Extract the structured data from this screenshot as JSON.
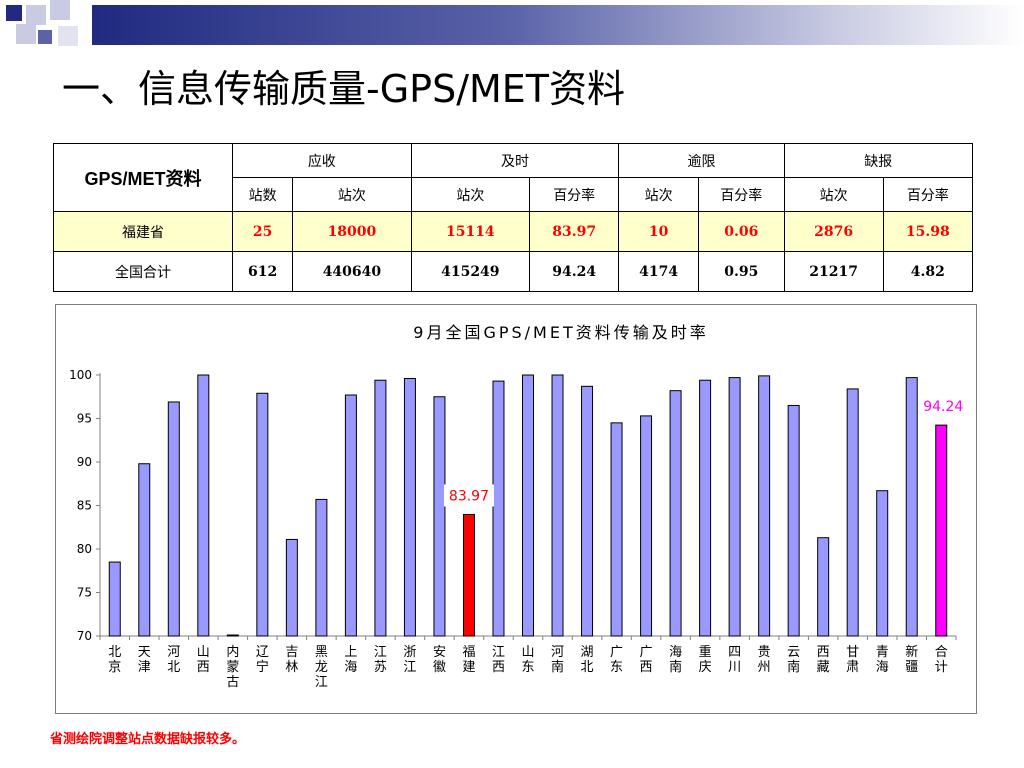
{
  "slide": {
    "title": "一、信息传输质量-GPS/MET资料",
    "note": "省测绘院调整站点数据缺报较多。"
  },
  "table": {
    "corner": "GPS/MET资料",
    "groups": [
      "应收",
      "及时",
      "逾限",
      "缺报"
    ],
    "subheaders": [
      "站数",
      "站次",
      "站次",
      "百分率",
      "站次",
      "百分率",
      "站次",
      "百分率"
    ],
    "rows": [
      {
        "label": "福建省",
        "values": [
          "25",
          "18000",
          "15114",
          "83.97",
          "10",
          "0.06",
          "2876",
          "15.98"
        ]
      },
      {
        "label": "全国合计",
        "values": [
          "612",
          "440640",
          "415249",
          "94.24",
          "4174",
          "0.95",
          "21217",
          "4.82"
        ]
      }
    ]
  },
  "chart_data": {
    "type": "bar",
    "title": "9月全国GPS/MET资料传输及时率",
    "xlabel": "",
    "ylabel": "",
    "ylim": [
      70,
      100
    ],
    "yticks": [
      70,
      75,
      80,
      85,
      90,
      95,
      100
    ],
    "grid": false,
    "legend": "none",
    "categories": [
      "北京",
      "天津",
      "河北",
      "山西",
      "内蒙古",
      "辽宁",
      "吉林",
      "黑龙江",
      "上海",
      "江苏",
      "浙江",
      "安徽",
      "福建",
      "江西",
      "山东",
      "河南",
      "湖北",
      "广东",
      "广西",
      "海南",
      "重庆",
      "四川",
      "贵州",
      "云南",
      "西藏",
      "甘肃",
      "青海",
      "新疆",
      "合计"
    ],
    "values": [
      78.5,
      89.8,
      96.9,
      100,
      70,
      97.9,
      81.1,
      85.7,
      97.7,
      99.4,
      99.6,
      97.5,
      83.97,
      99.3,
      100,
      100,
      98.7,
      94.5,
      95.3,
      98.2,
      99.4,
      99.7,
      99.9,
      96.5,
      81.3,
      98.4,
      86.7,
      99.7,
      94.24
    ],
    "bar_color": "#9999ff",
    "highlights": [
      {
        "category": "福建",
        "color": "#ff0000",
        "label": "83.97",
        "label_color": "#ff0000"
      },
      {
        "category": "合计",
        "color": "#ff00ff",
        "label": "94.24",
        "label_color": "#ff00ff"
      }
    ]
  }
}
